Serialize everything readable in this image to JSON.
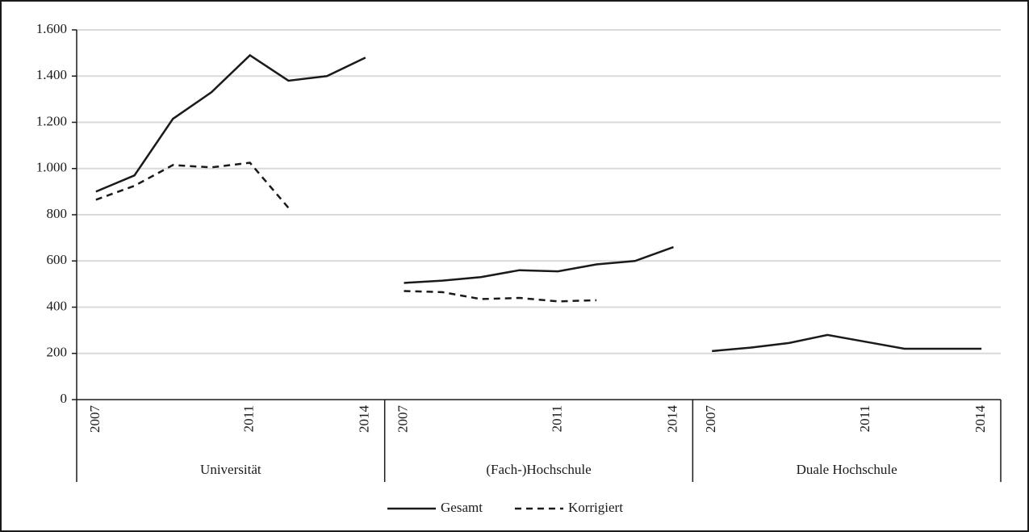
{
  "chart_data": {
    "type": "line",
    "categories": [
      "2007",
      null,
      null,
      null,
      "2011",
      null,
      null,
      "2014",
      "2007",
      null,
      null,
      null,
      "2011",
      null,
      null,
      "2014",
      "2007",
      null,
      null,
      null,
      "2011",
      null,
      null,
      "2014"
    ],
    "groups": [
      "Universität",
      "(Fach-)Hochschule",
      "Duale Hochschule"
    ],
    "series": [
      {
        "name": "Gesamt",
        "color": "#1a1a1a",
        "dashed": false,
        "values": [
          900,
          970,
          1215,
          1330,
          1490,
          1380,
          1400,
          1480,
          505,
          515,
          530,
          560,
          555,
          585,
          600,
          660,
          210,
          225,
          245,
          280,
          250,
          220,
          220,
          220
        ]
      },
      {
        "name": "Korrigiert",
        "color": "#1a1a1a",
        "dashed": true,
        "values": [
          865,
          925,
          1015,
          1005,
          1025,
          830,
          null,
          null,
          470,
          465,
          435,
          440,
          425,
          430,
          null,
          null,
          null,
          null,
          null,
          null,
          null,
          null,
          null,
          null
        ]
      }
    ],
    "ylim": [
      0,
      1600
    ],
    "yticks": [
      0,
      {
        "value": 200,
        "label": "200"
      },
      {
        "value": 400,
        "label": "400"
      },
      {
        "value": 600,
        "label": "600"
      },
      {
        "value": 800,
        "label": "800"
      },
      {
        "value": 1000,
        "label": "1.000"
      },
      {
        "value": 1200,
        "label": "1.200"
      },
      {
        "value": 1400,
        "label": "1.400"
      },
      {
        "value": 1600,
        "label": "1.600"
      }
    ],
    "grid": true,
    "legend": "bottom"
  }
}
